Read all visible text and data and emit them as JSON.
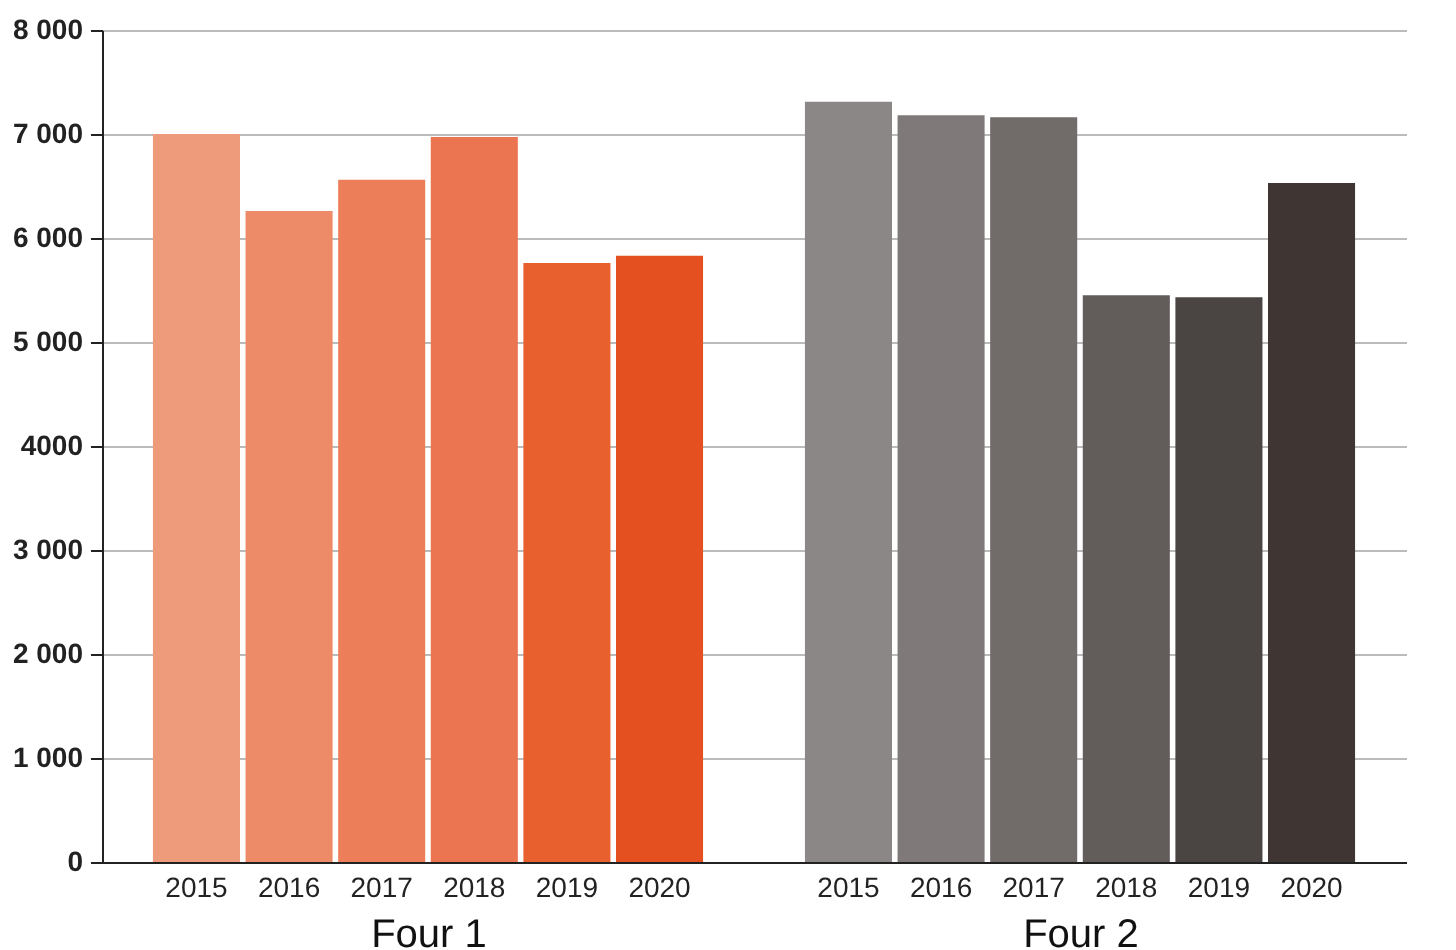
{
  "chart_data": [
    {
      "type": "bar",
      "xlabel": "Four 1",
      "categories": [
        "2015",
        "2016",
        "2017",
        "2018",
        "2019",
        "2020"
      ],
      "values": [
        7000,
        6260,
        6560,
        6970,
        5760,
        5830
      ],
      "colors": [
        "#ed9b7b",
        "#ed8b68",
        "#ec7f5a",
        "#eb7550",
        "#e8602e",
        "#e4501f"
      ],
      "ylim": [
        0,
        8000
      ],
      "yticks": [
        0,
        {
          "value": 1000,
          "label": "1 000"
        },
        {
          "value": 2000,
          "label": "2 000"
        },
        {
          "value": 3000,
          "label": "3 000"
        },
        4000,
        {
          "value": 5000,
          "label": "5 000"
        },
        {
          "value": 6000,
          "label": "6 000"
        },
        {
          "value": 7000,
          "label": "7 000"
        },
        {
          "value": 8000,
          "label": "8 000"
        }
      ],
      "grid": "y"
    },
    {
      "type": "bar",
      "xlabel": "Four 2",
      "categories": [
        "2015",
        "2016",
        "2017",
        "2018",
        "2019",
        "2020"
      ],
      "values": [
        7310,
        7180,
        7160,
        5450,
        5430,
        6530
      ],
      "colors": [
        "#8b8786",
        "#7f7a79",
        "#716b6a",
        "#625c5b",
        "#4a4442",
        "#3f3634"
      ],
      "ylim": [
        0,
        8000
      ],
      "yticks": [
        0,
        1000,
        2000,
        3000,
        4000,
        5000,
        6000,
        7000,
        8000
      ],
      "grid": "y",
      "tick_labels": "x"
    }
  ]
}
